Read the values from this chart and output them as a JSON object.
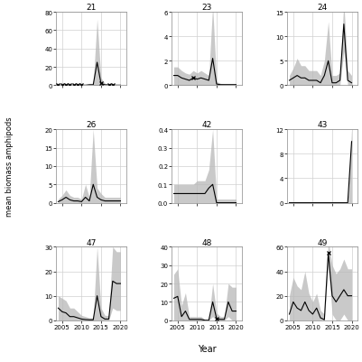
{
  "polygons": [
    "21",
    "23",
    "24",
    "26",
    "42",
    "43",
    "47",
    "48",
    "49"
  ],
  "years": [
    2004,
    2005,
    2006,
    2007,
    2008,
    2009,
    2010,
    2011,
    2012,
    2013,
    2014,
    2015,
    2016,
    2017,
    2018,
    2019,
    2020
  ],
  "data": {
    "21": {
      "mean": [
        0.1,
        0.1,
        0.1,
        0.1,
        0.1,
        0.1,
        0.1,
        0.1,
        0.5,
        0.5,
        25.0,
        2.0,
        0.5,
        0.3,
        0.2,
        0.1,
        0.1
      ],
      "sd_upper": [
        0.5,
        0.5,
        0.5,
        0.5,
        0.5,
        0.5,
        0.5,
        0.5,
        2.0,
        2.0,
        72.0,
        8.0,
        2.0,
        1.0,
        0.5,
        0.3,
        0.3
      ],
      "sd_lower": [
        0.0,
        0.0,
        0.0,
        0.0,
        0.0,
        0.0,
        0.0,
        0.0,
        0.0,
        0.0,
        0.0,
        0.0,
        0.0,
        0.0,
        0.0,
        0.0,
        0.0
      ],
      "star": [
        true,
        true,
        true,
        true,
        true,
        true,
        true,
        false,
        false,
        false,
        false,
        true,
        false,
        true,
        true,
        false,
        false
      ],
      "ylim": [
        0,
        80
      ],
      "yticks": [
        0,
        20,
        40,
        60,
        80
      ]
    },
    "23": {
      "mean": [
        0.8,
        0.8,
        0.6,
        0.5,
        0.4,
        0.6,
        0.5,
        0.6,
        0.5,
        0.4,
        2.2,
        0.1,
        0.05,
        0.05,
        0.05,
        0.05,
        0.05
      ],
      "sd_upper": [
        1.5,
        1.5,
        1.2,
        1.0,
        0.9,
        1.2,
        1.0,
        1.2,
        1.0,
        0.8,
        6.5,
        0.3,
        0.15,
        0.1,
        0.1,
        0.1,
        0.1
      ],
      "sd_lower": [
        0.0,
        0.0,
        0.0,
        0.0,
        0.0,
        0.0,
        0.0,
        0.0,
        0.0,
        0.0,
        0.0,
        0.0,
        0.0,
        0.0,
        0.0,
        0.0,
        0.0
      ],
      "star": [
        false,
        false,
        false,
        false,
        false,
        true,
        false,
        false,
        false,
        false,
        false,
        false,
        false,
        false,
        false,
        false,
        false
      ],
      "ylim": [
        0,
        6
      ],
      "yticks": [
        0,
        2,
        4,
        6
      ]
    },
    "24": {
      "mean": [
        1.0,
        1.5,
        2.0,
        1.5,
        1.5,
        1.0,
        1.0,
        1.0,
        0.5,
        2.0,
        5.0,
        0.5,
        0.5,
        1.0,
        12.5,
        1.0,
        0.5
      ],
      "sd_upper": [
        2.0,
        3.5,
        5.5,
        4.0,
        4.0,
        3.0,
        3.0,
        3.0,
        2.0,
        5.0,
        13.0,
        2.0,
        2.0,
        2.5,
        17.0,
        3.0,
        2.0
      ],
      "sd_lower": [
        0.0,
        0.0,
        0.0,
        0.0,
        0.0,
        0.0,
        0.0,
        0.0,
        0.0,
        0.0,
        0.0,
        0.0,
        0.0,
        0.0,
        7.0,
        0.0,
        0.0
      ],
      "star": [
        false,
        false,
        false,
        false,
        false,
        false,
        false,
        false,
        false,
        false,
        false,
        false,
        false,
        false,
        false,
        false,
        false
      ],
      "ylim": [
        0,
        15
      ],
      "yticks": [
        0,
        5,
        10,
        15
      ]
    },
    "26": {
      "mean": [
        0.3,
        0.8,
        1.5,
        0.8,
        0.5,
        0.5,
        0.3,
        1.5,
        0.5,
        5.0,
        1.5,
        0.8,
        0.5,
        0.5,
        0.5,
        0.5,
        0.5
      ],
      "sd_upper": [
        1.0,
        2.0,
        3.5,
        2.0,
        1.5,
        1.5,
        1.0,
        5.0,
        1.5,
        20.0,
        4.0,
        2.5,
        1.5,
        1.5,
        1.5,
        1.5,
        1.5
      ],
      "sd_lower": [
        0.0,
        0.0,
        0.0,
        0.0,
        0.0,
        0.0,
        0.0,
        0.0,
        0.0,
        0.0,
        0.0,
        0.0,
        0.0,
        0.0,
        0.0,
        0.0,
        0.0
      ],
      "star": [
        false,
        false,
        false,
        false,
        false,
        false,
        false,
        false,
        false,
        false,
        false,
        false,
        false,
        false,
        false,
        false,
        false
      ],
      "ylim": [
        0,
        20
      ],
      "yticks": [
        0,
        5,
        10,
        15,
        20
      ]
    },
    "42": {
      "mean": [
        0.05,
        0.05,
        0.05,
        0.05,
        0.05,
        0.05,
        0.05,
        0.05,
        0.05,
        0.08,
        0.1,
        0.0,
        0.0,
        0.0,
        0.0,
        0.0,
        0.0
      ],
      "sd_upper": [
        0.1,
        0.1,
        0.1,
        0.1,
        0.1,
        0.1,
        0.12,
        0.12,
        0.12,
        0.18,
        0.4,
        0.02,
        0.02,
        0.02,
        0.02,
        0.02,
        0.02
      ],
      "sd_lower": [
        0.0,
        0.0,
        0.0,
        0.0,
        0.0,
        0.0,
        0.0,
        0.0,
        0.0,
        0.0,
        0.0,
        0.0,
        0.0,
        0.0,
        0.0,
        0.0,
        0.0
      ],
      "star": [
        false,
        false,
        false,
        false,
        false,
        false,
        false,
        false,
        false,
        false,
        false,
        false,
        false,
        false,
        false,
        false,
        false
      ],
      "ylim": [
        0,
        0.4
      ],
      "yticks": [
        0.0,
        0.1,
        0.2,
        0.3,
        0.4
      ]
    },
    "43": {
      "mean": [
        0.0,
        0.0,
        0.0,
        0.0,
        0.0,
        0.0,
        0.0,
        0.0,
        0.0,
        0.0,
        0.0,
        0.0,
        0.0,
        0.0,
        0.0,
        0.0,
        10.0
      ],
      "sd_upper": [
        0.0,
        0.0,
        0.0,
        0.0,
        0.0,
        0.0,
        0.0,
        0.0,
        0.0,
        0.0,
        0.0,
        0.0,
        0.0,
        0.0,
        0.0,
        0.0,
        12.0
      ],
      "sd_lower": [
        0.0,
        0.0,
        0.0,
        0.0,
        0.0,
        0.0,
        0.0,
        0.0,
        0.0,
        0.0,
        0.0,
        0.0,
        0.0,
        0.0,
        0.0,
        0.0,
        0.0
      ],
      "star": [
        false,
        false,
        false,
        false,
        false,
        false,
        false,
        false,
        false,
        false,
        false,
        false,
        false,
        false,
        false,
        false,
        false
      ],
      "ylim": [
        0,
        12
      ],
      "yticks": [
        0,
        4,
        8,
        12
      ]
    },
    "47": {
      "mean": [
        5.0,
        3.5,
        3.0,
        1.5,
        1.5,
        1.0,
        0.5,
        0.3,
        0.2,
        0.2,
        10.0,
        1.5,
        0.5,
        0.5,
        16.0,
        15.0,
        15.0
      ],
      "sd_upper": [
        10.0,
        9.0,
        8.0,
        5.0,
        5.0,
        3.5,
        2.0,
        1.5,
        1.0,
        1.0,
        30.0,
        5.0,
        2.0,
        2.0,
        30.0,
        28.0,
        28.0
      ],
      "sd_lower": [
        0.0,
        0.0,
        0.0,
        0.0,
        0.0,
        0.0,
        0.0,
        0.0,
        0.0,
        0.0,
        0.0,
        0.0,
        0.0,
        0.0,
        5.0,
        4.0,
        4.0
      ],
      "star": [
        false,
        false,
        false,
        false,
        false,
        false,
        false,
        false,
        false,
        false,
        false,
        false,
        false,
        false,
        false,
        false,
        false
      ],
      "ylim": [
        0,
        30
      ],
      "yticks": [
        0,
        10,
        20,
        30
      ]
    },
    "48": {
      "mean": [
        12.0,
        13.0,
        2.0,
        5.0,
        0.5,
        0.5,
        0.5,
        0.5,
        0.0,
        0.0,
        10.0,
        1.0,
        0.5,
        0.5,
        10.0,
        5.0,
        5.0
      ],
      "sd_upper": [
        25.0,
        28.0,
        8.0,
        15.0,
        2.0,
        2.0,
        2.0,
        2.0,
        0.5,
        0.5,
        20.0,
        4.0,
        2.0,
        2.0,
        20.0,
        18.0,
        18.0
      ],
      "sd_lower": [
        0.0,
        0.0,
        0.0,
        0.0,
        0.0,
        0.0,
        0.0,
        0.0,
        0.0,
        0.0,
        2.0,
        0.0,
        0.0,
        0.0,
        2.0,
        0.0,
        0.0
      ],
      "star": [
        false,
        false,
        false,
        false,
        false,
        false,
        false,
        false,
        false,
        false,
        false,
        true,
        false,
        false,
        false,
        false,
        false
      ],
      "ylim": [
        0,
        40
      ],
      "yticks": [
        0,
        10,
        20,
        30,
        40
      ]
    },
    "49": {
      "mean": [
        5.0,
        15.0,
        10.0,
        8.0,
        15.0,
        8.0,
        5.0,
        10.0,
        2.0,
        0.5,
        55.0,
        20.0,
        15.0,
        20.0,
        25.0,
        20.0,
        20.0
      ],
      "sd_upper": [
        20.0,
        35.0,
        28.0,
        25.0,
        40.0,
        22.0,
        15.0,
        22.0,
        8.0,
        5.0,
        65.0,
        45.0,
        38.0,
        42.0,
        50.0,
        42.0,
        42.0
      ],
      "sd_lower": [
        0.0,
        0.0,
        0.0,
        0.0,
        0.0,
        0.0,
        0.0,
        0.0,
        0.0,
        0.0,
        45.0,
        5.0,
        0.0,
        0.0,
        5.0,
        0.0,
        0.0
      ],
      "star": [
        false,
        false,
        false,
        false,
        false,
        false,
        false,
        false,
        false,
        false,
        true,
        false,
        false,
        false,
        false,
        false,
        false
      ],
      "ylim": [
        0,
        60
      ],
      "yticks": [
        0,
        20,
        40,
        60
      ]
    }
  },
  "xlabel": "Year",
  "ylabel": "mean biomass amphipods",
  "background_color": "#ffffff",
  "grid_color": "#d0d0d0",
  "shade_color": "#b8b8b8",
  "line_color": "#000000",
  "xticks": [
    2005,
    2010,
    2015,
    2020
  ],
  "xmin": 2003.5,
  "xmax": 2021.5
}
